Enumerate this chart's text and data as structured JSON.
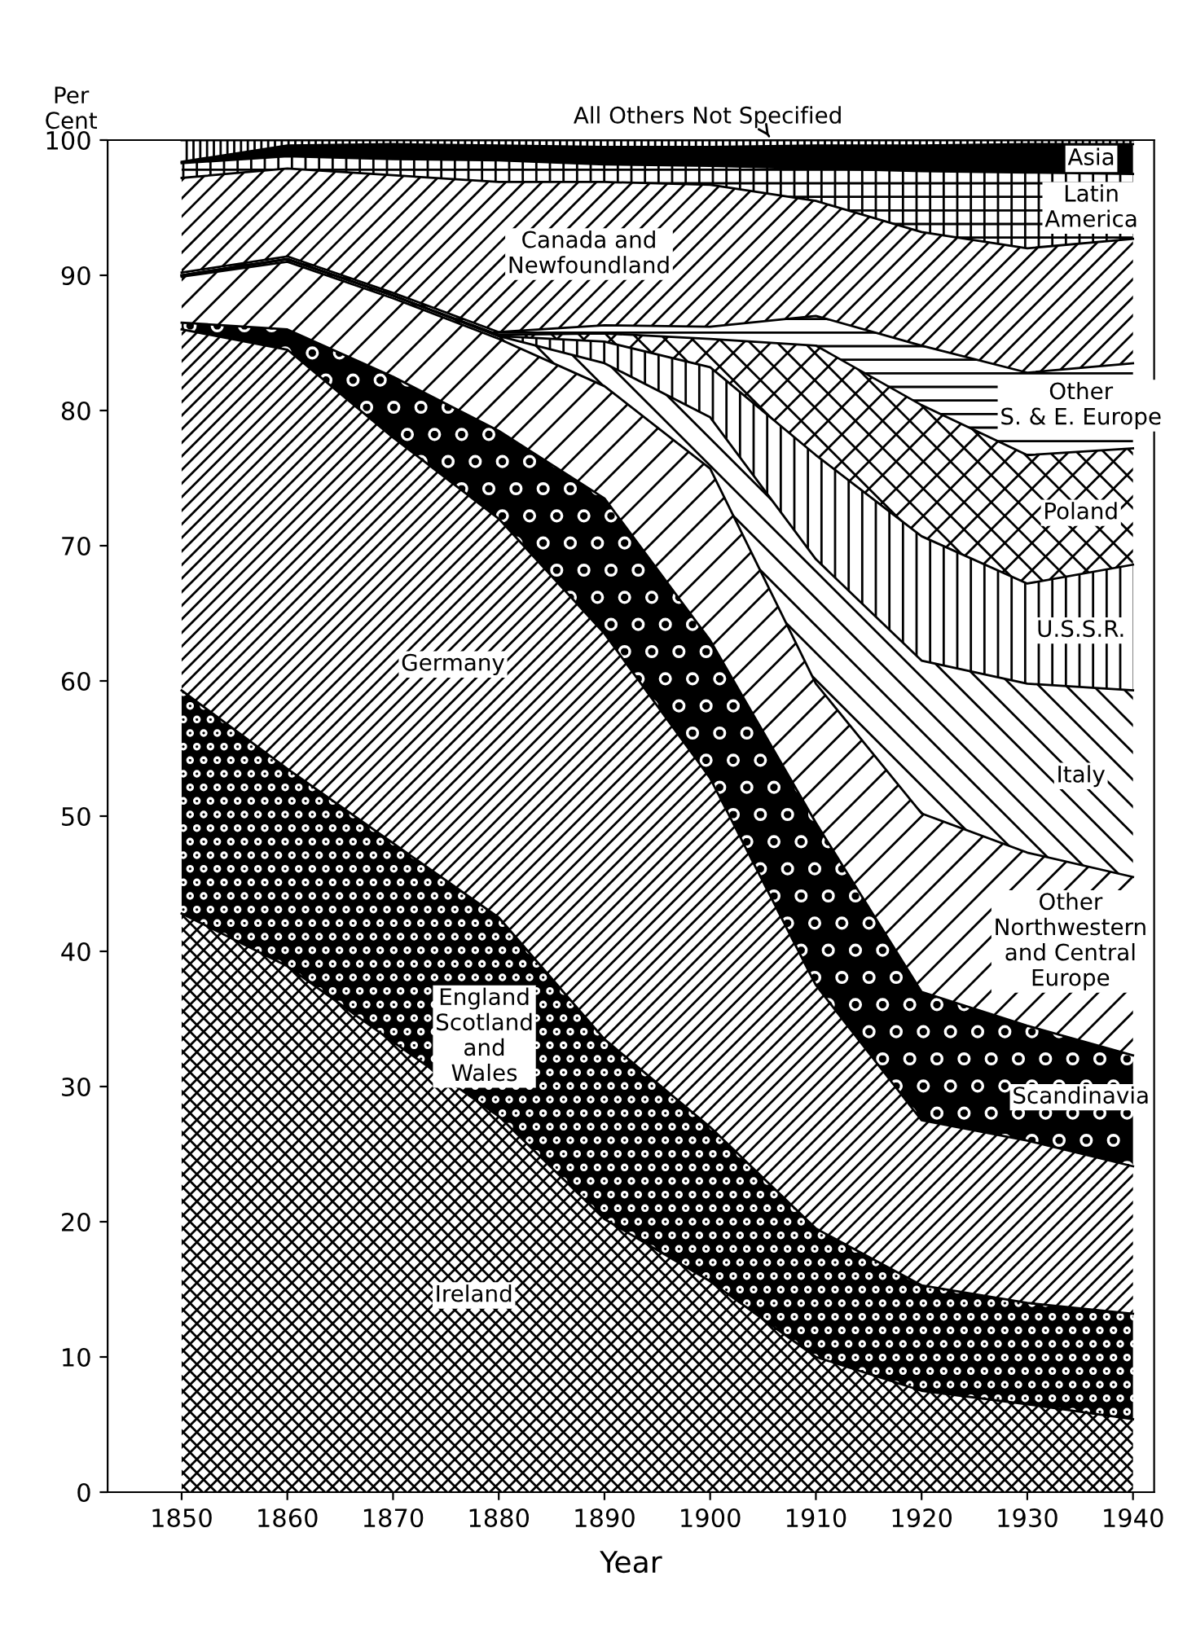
{
  "chart_data": {
    "type": "area",
    "stacked": true,
    "xlabel": "Year",
    "ylabel": "Per\nCent",
    "x": [
      1850,
      1860,
      1870,
      1880,
      1890,
      1900,
      1910,
      1920,
      1930,
      1940
    ],
    "xlim": [
      1843,
      1942
    ],
    "xticks": [
      1850,
      1860,
      1870,
      1880,
      1890,
      1900,
      1910,
      1920,
      1930,
      1940
    ],
    "ylim": [
      0,
      100
    ],
    "yticks": [
      0,
      10,
      20,
      30,
      40,
      50,
      60,
      70,
      80,
      90,
      100
    ],
    "grid": false,
    "series": [
      {
        "name": "Ireland",
        "color": "#000000",
        "values": [
          42.8,
          38.9,
          33.3,
          27.8,
          20.2,
          15.6,
          10.0,
          7.5,
          6.5,
          5.4
        ]
      },
      {
        "name": "England\nScotland\nand\nWales",
        "color": "#000000",
        "values": [
          16.5,
          14.6,
          14.7,
          14.7,
          13.3,
          11.4,
          9.5,
          7.8,
          7.5,
          7.8
        ]
      },
      {
        "name": "Germany",
        "color": "#000000",
        "values": [
          26.7,
          31.0,
          30.0,
          29.5,
          30.0,
          25.8,
          18.0,
          12.2,
          12.0,
          10.9
        ]
      },
      {
        "name": "Scandinavia",
        "color": "#000000",
        "values": [
          0.5,
          1.5,
          4.5,
          6.5,
          10.0,
          10.2,
          12.0,
          9.5,
          8.5,
          8.2
        ]
      },
      {
        "name": "Other\nNorthwestern\nand Central\nEurope",
        "color": "#000000",
        "values": [
          3.4,
          5.0,
          5.8,
          6.8,
          8.3,
          12.7,
          10.3,
          13.2,
          12.8,
          13.2
        ]
      },
      {
        "name": "Italy",
        "color": "#000000",
        "values": [
          0.1,
          0.2,
          0.2,
          0.2,
          1.7,
          3.8,
          9.2,
          11.3,
          12.5,
          13.8
        ]
      },
      {
        "name": "U.S.S.R.",
        "color": "#000000",
        "values": [
          0,
          0,
          0,
          0,
          1.6,
          3.7,
          7.7,
          9.2,
          7.4,
          9.3
        ]
      },
      {
        "name": "Poland",
        "color": "#000000",
        "values": [
          0,
          0,
          0,
          0.1,
          0.6,
          2.1,
          8.1,
          9.7,
          9.5,
          8.6
        ]
      },
      {
        "name": "Other\nS. & E. Europe",
        "color": "#000000",
        "values": [
          0.2,
          0.2,
          0.2,
          0.2,
          0.6,
          0.9,
          2.2,
          4.4,
          6.1,
          6.3
        ]
      },
      {
        "name": "Canada and\nNewfoundland",
        "color": "#000000",
        "values": [
          7.0,
          6.5,
          8.7,
          11.1,
          10.6,
          10.5,
          8.5,
          8.4,
          9.2,
          9.2
        ]
      },
      {
        "name": "Latin\nAmerica",
        "color": "#000000",
        "values": [
          1.1,
          0.9,
          1.2,
          1.6,
          1.3,
          1.4,
          2.4,
          4.5,
          5.6,
          4.8
        ]
      },
      {
        "name": "Asia",
        "color": "#000000",
        "values": [
          0.1,
          0.8,
          1.1,
          1.1,
          1.3,
          1.4,
          1.7,
          1.9,
          2.1,
          2.2
        ]
      },
      {
        "name": "All Others Not Specified",
        "color": "#000000",
        "values": [
          1.6,
          0.4,
          0.3,
          0.4,
          0.5,
          0.5,
          0.4,
          0.4,
          0.3,
          0.3
        ]
      }
    ]
  }
}
